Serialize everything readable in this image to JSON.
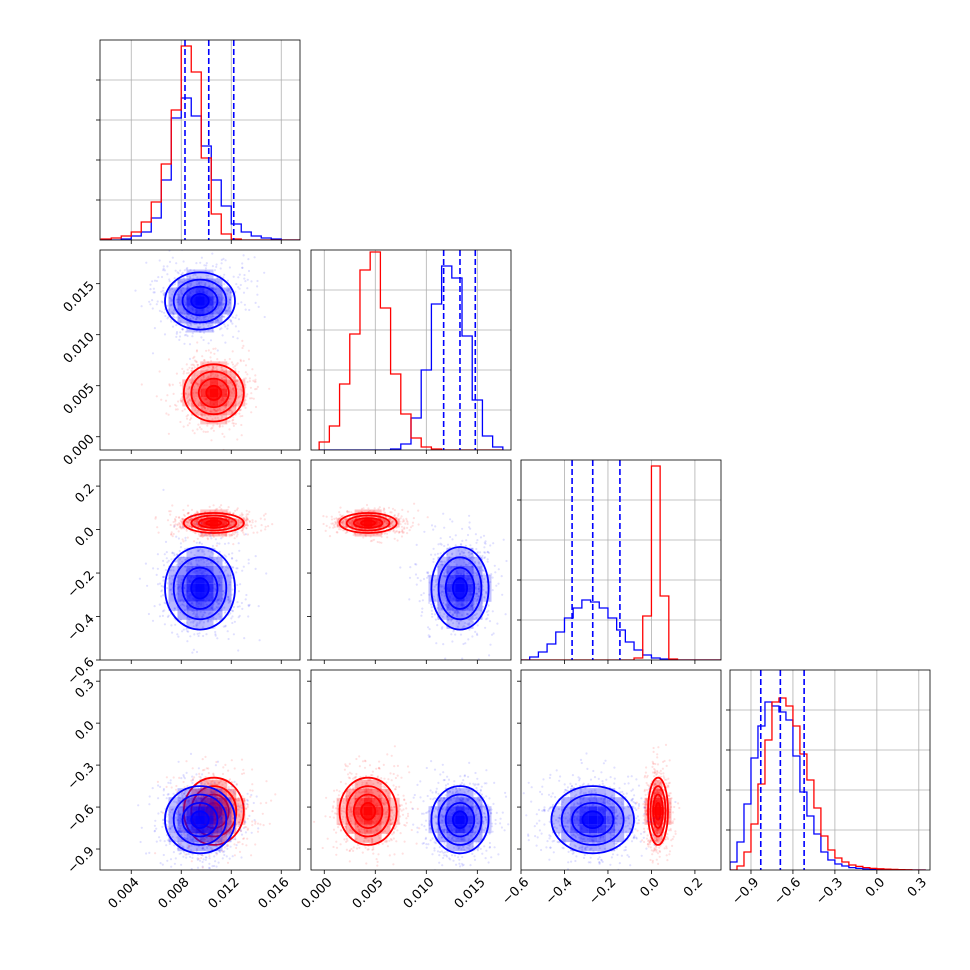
{
  "chart_data": {
    "type": "corner",
    "grid": true,
    "colors": {
      "red": "#ff0000",
      "blue": "#0000ff",
      "grid": "#b0b0b0",
      "axis": "#000000"
    },
    "parameters": [
      {
        "ticks": [
          0.004,
          0.008,
          0.012,
          0.016
        ],
        "tick_labels": [
          "0.004",
          "0.008",
          "0.012",
          "0.016"
        ],
        "range": [
          0.0015,
          0.0175
        ]
      },
      {
        "ticks": [
          0.0,
          0.005,
          0.01,
          0.015
        ],
        "tick_labels": [
          "0.000",
          "0.005",
          "0.010",
          "0.015"
        ],
        "range": [
          -0.0013,
          0.0183
        ]
      },
      {
        "ticks": [
          -0.6,
          -0.4,
          -0.2,
          0.0,
          0.2
        ],
        "tick_labels": [
          "−0.6",
          "−0.4",
          "−0.2",
          "0.0",
          "0.2"
        ],
        "range": [
          -0.6,
          0.32
        ]
      },
      {
        "ticks": [
          -0.9,
          -0.6,
          -0.3,
          0.0,
          0.3
        ],
        "tick_labels": [
          "−0.9",
          "−0.6",
          "−0.3",
          "0.0",
          "0.3"
        ],
        "range": [
          -1.05,
          0.38
        ]
      }
    ],
    "series": [
      {
        "color": "red",
        "means": [
          0.0106,
          0.0043,
          0.03,
          -0.63
        ],
        "sds": [
          0.0012,
          0.0014,
          0.023,
          0.12
        ]
      },
      {
        "color": "blue",
        "means": [
          0.0095,
          0.0133,
          -0.27,
          -0.69
        ],
        "sds": [
          0.0014,
          0.0014,
          0.095,
          0.12
        ]
      }
    ],
    "diagonal": [
      {
        "quantiles": [
          0.0083,
          0.0102,
          0.0122
        ],
        "bin_edges": [
          0.0016,
          0.0024,
          0.0032,
          0.004,
          0.0048,
          0.0056,
          0.0064,
          0.0072,
          0.008,
          0.0088,
          0.0096,
          0.0104,
          0.0112,
          0.012,
          0.0128,
          0.0136,
          0.0144,
          0.0152,
          0.016,
          0.0168,
          0.0176
        ],
        "red": [
          0.005,
          0.01,
          0.02,
          0.04,
          0.09,
          0.19,
          0.38,
          0.65,
          0.97,
          0.84,
          0.41,
          0.13,
          0.03,
          0.005,
          0.0,
          0.0,
          0.0,
          0.0,
          0.0,
          0.0
        ],
        "blue": [
          0.0,
          0.0,
          0.005,
          0.02,
          0.04,
          0.11,
          0.3,
          0.61,
          0.71,
          0.62,
          0.47,
          0.3,
          0.17,
          0.08,
          0.04,
          0.02,
          0.01,
          0.005,
          0.0,
          0.0
        ]
      },
      {
        "quantiles": [
          0.0117,
          0.0133,
          0.0148
        ],
        "bin_edges": [
          -0.0005,
          0.0005,
          0.0015,
          0.0025,
          0.0035,
          0.0045,
          0.0055,
          0.0065,
          0.0075,
          0.0085,
          0.0095,
          0.0105,
          0.0115,
          0.0125,
          0.0135,
          0.0145,
          0.0155,
          0.0165,
          0.0175
        ],
        "red": [
          0.04,
          0.12,
          0.33,
          0.58,
          0.9,
          0.99,
          0.71,
          0.38,
          0.18,
          0.06,
          0.015,
          0.005,
          0.0,
          0.0,
          0.0,
          0.0,
          0.0,
          0.0
        ],
        "blue": [
          0.0,
          0.0,
          0.0,
          0.0,
          0.0,
          0.0,
          0.0,
          0.005,
          0.03,
          0.16,
          0.4,
          0.73,
          0.92,
          0.86,
          0.57,
          0.25,
          0.07,
          0.015
        ]
      },
      {
        "quantiles": [
          -0.365,
          -0.27,
          -0.145
        ],
        "bin_edges": [
          -0.6,
          -0.56,
          -0.52,
          -0.48,
          -0.44,
          -0.4,
          -0.36,
          -0.32,
          -0.28,
          -0.24,
          -0.2,
          -0.16,
          -0.12,
          -0.08,
          -0.04,
          0.0,
          0.04,
          0.08,
          0.12,
          0.16,
          0.2,
          0.24,
          0.28,
          0.32
        ],
        "red": [
          0.0,
          0.0,
          0.0,
          0.0,
          0.0,
          0.0,
          0.0,
          0.0,
          0.0,
          0.0,
          0.0,
          0.0,
          0.0,
          0.01,
          0.22,
          0.97,
          0.32,
          0.005,
          0.0,
          0.0,
          0.0,
          0.0,
          0.0
        ],
        "blue": [
          0.0,
          0.015,
          0.04,
          0.08,
          0.14,
          0.21,
          0.26,
          0.3,
          0.29,
          0.26,
          0.21,
          0.15,
          0.09,
          0.05,
          0.025,
          0.01,
          0.005,
          0.0,
          0.0,
          0.0,
          0.0,
          0.0,
          0.0
        ]
      },
      {
        "quantiles": [
          -0.83,
          -0.69,
          -0.52
        ],
        "bin_edges": [
          -1.05,
          -1.0,
          -0.95,
          -0.9,
          -0.85,
          -0.8,
          -0.75,
          -0.7,
          -0.65,
          -0.6,
          -0.55,
          -0.5,
          -0.45,
          -0.4,
          -0.35,
          -0.3,
          -0.25,
          -0.2,
          -0.15,
          -0.1,
          -0.05,
          0.0,
          0.05,
          0.1,
          0.15,
          0.2,
          0.25,
          0.3,
          0.35
        ],
        "red": [
          0.0,
          0.02,
          0.09,
          0.23,
          0.43,
          0.65,
          0.84,
          0.86,
          0.82,
          0.72,
          0.58,
          0.45,
          0.31,
          0.17,
          0.1,
          0.06,
          0.04,
          0.025,
          0.018,
          0.012,
          0.008,
          0.006,
          0.004,
          0.003,
          0.002,
          0.001,
          0.0,
          0.0
        ],
        "blue": [
          0.04,
          0.14,
          0.33,
          0.56,
          0.72,
          0.84,
          0.82,
          0.79,
          0.75,
          0.57,
          0.39,
          0.27,
          0.18,
          0.09,
          0.05,
          0.03,
          0.02,
          0.012,
          0.008,
          0.005,
          0.003,
          0.002,
          0.0,
          0.0,
          0.0,
          0.0,
          0.0,
          0.0
        ]
      }
    ]
  }
}
